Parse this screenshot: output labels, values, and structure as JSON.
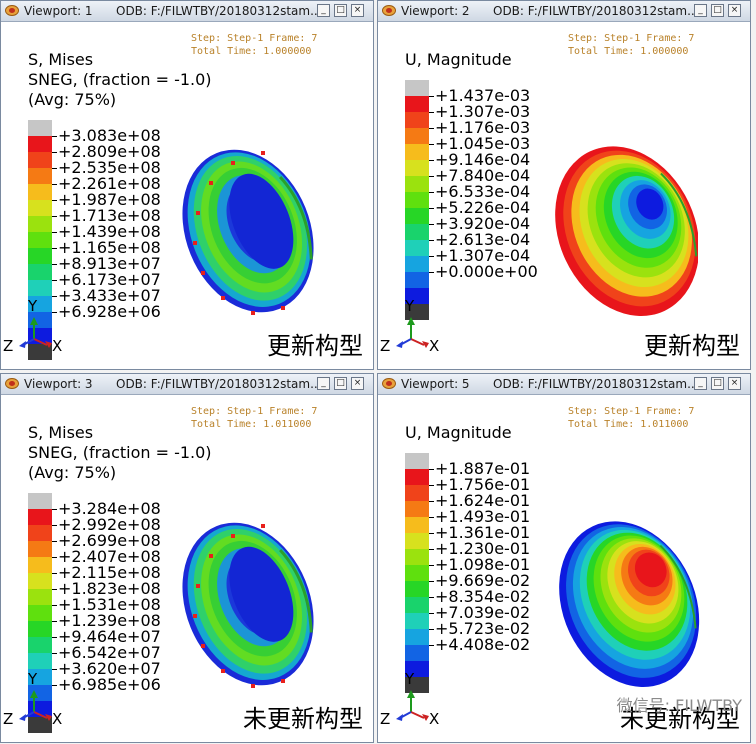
{
  "colors": {
    "legend": [
      "#c6c6c6",
      "#e8151b",
      "#f0431a",
      "#f57a14",
      "#f6bc1c",
      "#d7e11e",
      "#9be20e",
      "#5fe00e",
      "#27d626",
      "#19d36c",
      "#1fd0b8",
      "#16a4e0",
      "#1264e4",
      "#0d1bdf",
      "#3a3a3a"
    ]
  },
  "viewports": [
    {
      "window_title": "Viewport: 1",
      "odb": "ODB: F:/FILWTBY/20180312stam...",
      "step_line": "Step: Step-1     Frame: 7",
      "time_line": "Total Time: 1.000000",
      "header": [
        "S, Mises",
        "SNEG, (fraction = -1.0)",
        "(Avg: 75%)"
      ],
      "legend": [
        "+3.083e+08",
        "+2.809e+08",
        "+2.535e+08",
        "+2.261e+08",
        "+1.987e+08",
        "+1.713e+08",
        "+1.439e+08",
        "+1.165e+08",
        "+8.913e+07",
        "+6.173e+07",
        "+3.433e+07",
        "+6.928e+06"
      ],
      "axes": {
        "y": "Y",
        "z": "Z",
        "x": "X"
      },
      "caption": "更新构型",
      "watermark": ""
    },
    {
      "window_title": "Viewport: 2",
      "odb": "ODB: F:/FILWTBY/20180312stam...",
      "step_line": "Step: Step-1     Frame: 7",
      "time_line": "Total Time: 1.000000",
      "header": [
        "U, Magnitude"
      ],
      "legend": [
        "+1.437e-03",
        "+1.307e-03",
        "+1.176e-03",
        "+1.045e-03",
        "+9.146e-04",
        "+7.840e-04",
        "+6.533e-04",
        "+5.226e-04",
        "+3.920e-04",
        "+2.613e-04",
        "+1.307e-04",
        "+0.000e+00"
      ],
      "axes": {
        "y": "Y",
        "z": "Z",
        "x": "X"
      },
      "caption": "更新构型",
      "watermark": ""
    },
    {
      "window_title": "Viewport: 3",
      "odb": "ODB: F:/FILWTBY/20180312stam...",
      "step_line": "Step: Step-1     Frame: 7",
      "time_line": "Total Time: 1.011000",
      "header": [
        "S, Mises",
        "SNEG, (fraction = -1.0)",
        "(Avg: 75%)"
      ],
      "legend": [
        "+3.284e+08",
        "+2.992e+08",
        "+2.699e+08",
        "+2.407e+08",
        "+2.115e+08",
        "+1.823e+08",
        "+1.531e+08",
        "+1.239e+08",
        "+9.464e+07",
        "+6.542e+07",
        "+3.620e+07",
        "+6.985e+06"
      ],
      "axes": {
        "y": "Y",
        "z": "Z",
        "x": "X"
      },
      "caption": "未更新构型",
      "watermark": ""
    },
    {
      "window_title": "Viewport: 5",
      "odb": "ODB: F:/FILWTBY/20180312stam...",
      "step_line": "Step: Step-1     Frame: 7",
      "time_line": "Total Time: 1.011000",
      "header": [
        "U, Magnitude"
      ],
      "legend": [
        "+1.887e-01",
        "+1.756e-01",
        "+1.624e-01",
        "+1.493e-01",
        "+1.361e-01",
        "+1.230e-01",
        "+1.098e-01",
        "+9.669e-02",
        "+8.354e-02",
        "+7.039e-02",
        "+5.723e-02",
        "+4.408e-02"
      ],
      "axes": {
        "y": "Y",
        "z": "Z",
        "x": "X"
      },
      "caption": "未更新构型",
      "watermark": "微信号: FILWTBY"
    }
  ]
}
